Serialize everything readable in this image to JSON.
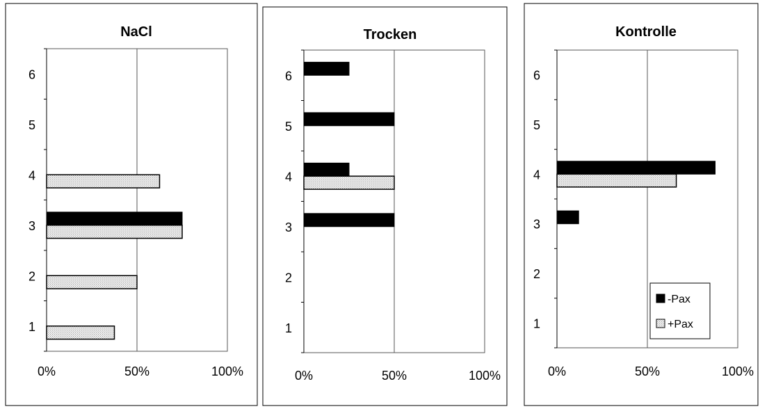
{
  "chart_data": [
    {
      "type": "bar",
      "orientation": "horizontal",
      "title": "NaCl",
      "categories": [
        "1",
        "2",
        "3",
        "4",
        "5",
        "6"
      ],
      "xticks": [
        "0%",
        "50%",
        "100%"
      ],
      "xlim": [
        0,
        100
      ],
      "series": [
        {
          "name": "-Pax",
          "values": [
            0,
            0,
            75,
            0,
            0,
            0
          ]
        },
        {
          "name": "+Pax",
          "values": [
            37.5,
            50,
            75,
            62.5,
            0,
            0
          ]
        }
      ]
    },
    {
      "type": "bar",
      "orientation": "horizontal",
      "title": "Trocken",
      "categories": [
        "1",
        "2",
        "3",
        "4",
        "5",
        "6"
      ],
      "xticks": [
        "0%",
        "50%",
        "100%"
      ],
      "xlim": [
        0,
        100
      ],
      "series": [
        {
          "name": "-Pax",
          "values": [
            0,
            0,
            50,
            25,
            50,
            25
          ]
        },
        {
          "name": "+Pax",
          "values": [
            0,
            0,
            0,
            50,
            0,
            0
          ]
        }
      ]
    },
    {
      "type": "bar",
      "orientation": "horizontal",
      "title": "Kontrolle",
      "categories": [
        "1",
        "2",
        "3",
        "4",
        "5",
        "6"
      ],
      "xticks": [
        "0%",
        "50%",
        "100%"
      ],
      "xlim": [
        0,
        100
      ],
      "legend": {
        "position": "bottom-right",
        "entries": [
          "-Pax",
          "+Pax"
        ]
      },
      "series": [
        {
          "name": "-Pax",
          "values": [
            0,
            0,
            12,
            87.5,
            0,
            0
          ]
        },
        {
          "name": "+Pax",
          "values": [
            0,
            0,
            0,
            66,
            0,
            0
          ]
        }
      ]
    }
  ],
  "colors": {
    "minus_pax": "#000000",
    "plus_pax": "#d8d8d8",
    "gridline": "#555555"
  }
}
